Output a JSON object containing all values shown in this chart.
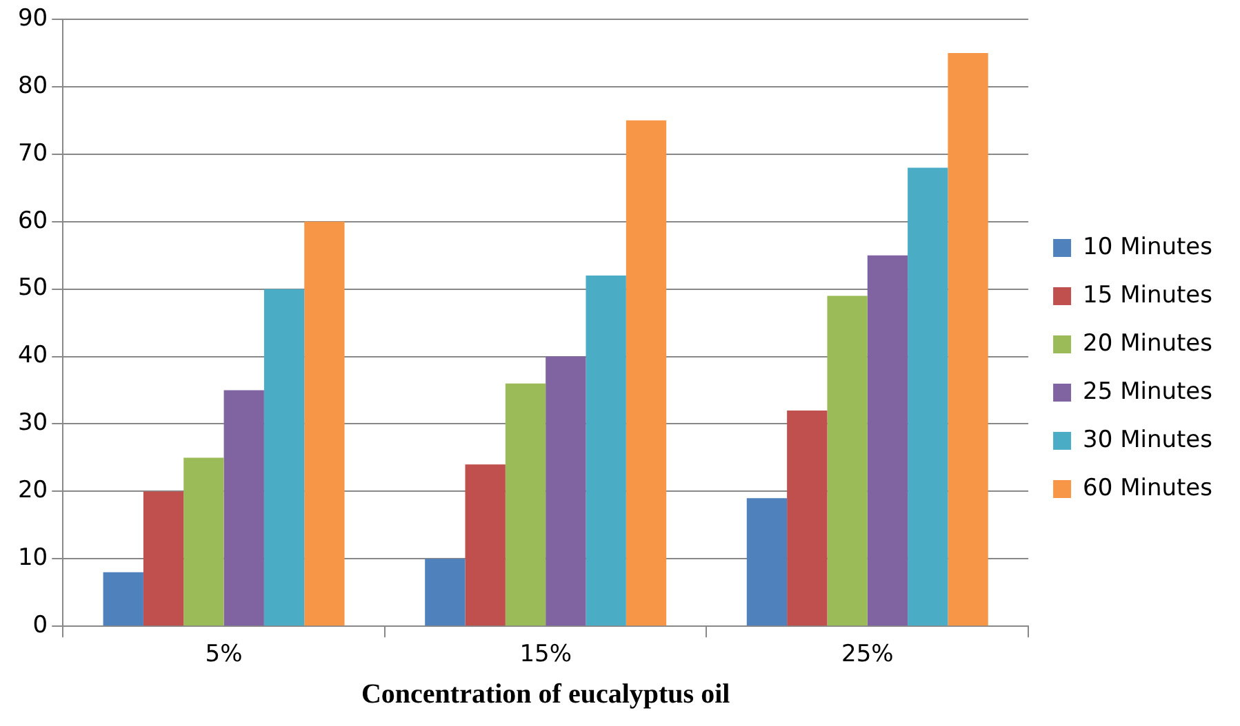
{
  "chart_data": {
    "type": "bar",
    "xlabel": "Concentration of eucalyptus oil",
    "categories": [
      "5%",
      "15%",
      "25%"
    ],
    "series": [
      {
        "name": "10 Minutes",
        "color": "#4f81bd",
        "values": [
          8,
          10,
          19
        ]
      },
      {
        "name": "15 Minutes",
        "color": "#c0504d",
        "values": [
          20,
          24,
          32
        ]
      },
      {
        "name": "20 Minutes",
        "color": "#9bbb59",
        "values": [
          25,
          36,
          49
        ]
      },
      {
        "name": "25 Minutes",
        "color": "#8064a2",
        "values": [
          35,
          40,
          55
        ]
      },
      {
        "name": "30 Minutes",
        "color": "#4bacc6",
        "values": [
          50,
          52,
          68
        ]
      },
      {
        "name": "60 Minutes",
        "color": "#f79646",
        "values": [
          60,
          75,
          85
        ]
      }
    ],
    "ylim": [
      0,
      90
    ],
    "yticks": [
      0,
      10,
      20,
      30,
      40,
      50,
      60,
      70,
      80,
      90
    ],
    "grid": "y",
    "legend": "right"
  }
}
